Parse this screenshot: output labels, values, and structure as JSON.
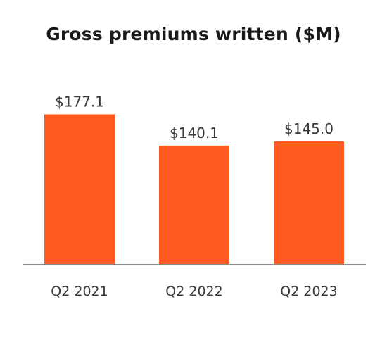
{
  "chart_data": {
    "type": "bar",
    "title": "Gross premiums written ($M)",
    "categories": [
      "Q2 2021",
      "Q2 2022",
      "Q2 2023"
    ],
    "values": [
      177.1,
      140.1,
      145.0
    ],
    "value_labels": [
      "$177.1",
      "$140.1",
      "$145.0"
    ],
    "xlabel": "",
    "ylabel": "",
    "ylim": [
      0,
      180
    ],
    "grid": false,
    "bar_color": "#ff5a1f",
    "axis_color": "#8a8a8a"
  }
}
